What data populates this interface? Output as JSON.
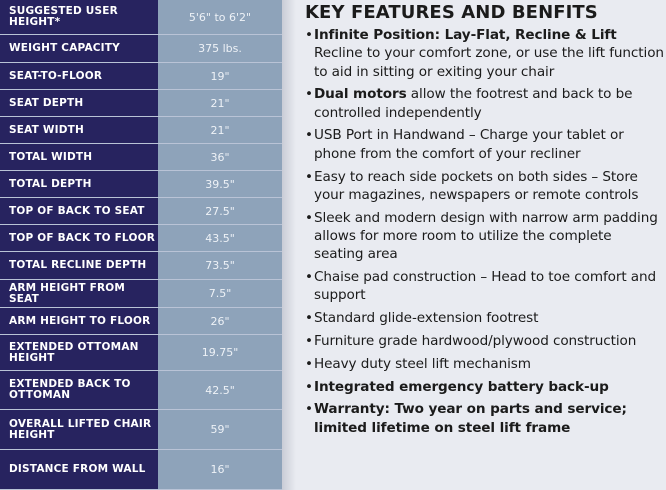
{
  "specs": [
    {
      "label": "SUGGESTED USER HEIGHT*",
      "value": "5'6\" to 6'2\""
    },
    {
      "label": "WEIGHT CAPACITY",
      "value": "375 lbs."
    },
    {
      "label": "SEAT-TO-FLOOR",
      "value": "19\""
    },
    {
      "label": "SEAT DEPTH",
      "value": "21\""
    },
    {
      "label": "SEAT WIDTH",
      "value": "21\""
    },
    {
      "label": "TOTAL WIDTH",
      "value": "36\""
    },
    {
      "label": "TOTAL DEPTH",
      "value": "39.5\""
    },
    {
      "label": "TOP OF BACK TO SEAT",
      "value": "27.5\""
    },
    {
      "label": "TOP OF BACK TO FLOOR",
      "value": "43.5\""
    },
    {
      "label": "TOTAL RECLINE DEPTH",
      "value": "73.5\""
    },
    {
      "label": "ARM HEIGHT FROM SEAT",
      "value": "7.5\""
    },
    {
      "label": "ARM HEIGHT TO FLOOR",
      "value": "26\""
    },
    {
      "label": "EXTENDED OTTOMAN HEIGHT",
      "value": "19.75\""
    },
    {
      "label": "EXTENDED BACK TO OTTOMAN",
      "value": "42.5\""
    },
    {
      "label": "OVERALL LIFTED CHAIR HEIGHT",
      "value": "59\""
    },
    {
      "label": "DISTANCE FROM WALL",
      "value": "16\""
    }
  ],
  "features": {
    "title": "KEY FEATURES AND BENFITS",
    "items": [
      {
        "bold": "Infinite Position: Lay-Flat, Recline & Lift",
        "text": "Recline to your comfort zone, or use the lift function to aid in sitting or exiting your chair",
        "break": true
      },
      {
        "bold": "Dual motors",
        "text": " allow the footrest and back to be controlled independently"
      },
      {
        "bold": "",
        "text": "USB Port in Handwand – Charge your tablet or phone from the comfort of your recliner"
      },
      {
        "bold": "",
        "text": "Easy to reach side pockets on both sides – Store your magazines, newspapers or remote controls"
      },
      {
        "bold": "",
        "text": "Sleek and modern design with narrow arm padding allows for more room to utilize the complete seating area"
      },
      {
        "bold": "",
        "text": "Chaise pad construction – Head to toe comfort and support"
      },
      {
        "bold": "",
        "text": "Standard glide-extension footrest"
      },
      {
        "bold": "",
        "text": "Furniture grade hardwood/plywood construction"
      },
      {
        "bold": "",
        "text": "Heavy duty steel lift mechanism"
      },
      {
        "bold": "Integrated emergency battery back-up",
        "text": ""
      },
      {
        "bold": "Warranty: Two year on parts and service; limited lifetime on steel lift frame",
        "text": ""
      }
    ]
  },
  "colors": {
    "label_bg": "#27235f",
    "value_bg": "#8ea3ba",
    "page_bg": "#e9ebf1"
  }
}
